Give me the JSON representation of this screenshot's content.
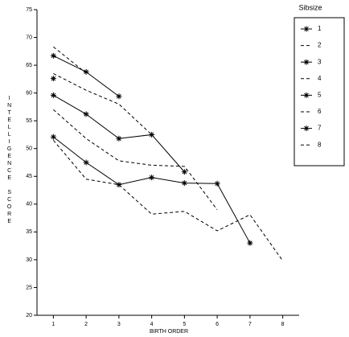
{
  "chart_data": {
    "type": "line",
    "x_label": "BIRTH ORDER",
    "y_label": "INTELLIGENCE SCORE",
    "legend_title": "Sibsize",
    "x": [
      1,
      2,
      3,
      4,
      5,
      6,
      7,
      8
    ],
    "xlim": [
      0.5,
      8.5
    ],
    "xticks": [
      1,
      2,
      3,
      4,
      5,
      6,
      7,
      8
    ],
    "ylim": [
      20,
      75
    ],
    "yticks": [
      20,
      25,
      30,
      35,
      40,
      45,
      50,
      55,
      60,
      65,
      70,
      75
    ],
    "legend": "outside right",
    "series": [
      {
        "name": "1",
        "color": "#000000",
        "style": "solid",
        "marker": "asterisk",
        "values": [
          62.6,
          null,
          null,
          null,
          null,
          null,
          null,
          null
        ]
      },
      {
        "name": "2",
        "color": "#000000",
        "style": "dashed",
        "marker": "none",
        "values": [
          68.3,
          63.6,
          null,
          null,
          null,
          null,
          null,
          null
        ]
      },
      {
        "name": "3",
        "color": "#000000",
        "style": "solid",
        "marker": "asterisk",
        "values": [
          66.7,
          63.8,
          59.4,
          null,
          null,
          null,
          null,
          null
        ]
      },
      {
        "name": "4",
        "color": "#000000",
        "style": "dashed",
        "marker": "none",
        "values": [
          63.5,
          60.5,
          58,
          52.5,
          null,
          null,
          null,
          null
        ]
      },
      {
        "name": "5",
        "color": "#000000",
        "style": "solid",
        "marker": "asterisk",
        "values": [
          59.6,
          56.2,
          51.8,
          52.5,
          45.8,
          null,
          null,
          null
        ]
      },
      {
        "name": "6",
        "color": "#000000",
        "style": "dashed",
        "marker": "none",
        "values": [
          57,
          51.8,
          47.8,
          47,
          46.8,
          39,
          null,
          null
        ]
      },
      {
        "name": "7",
        "color": "#000000",
        "style": "solid",
        "marker": "asterisk",
        "values": [
          52.1,
          47.5,
          43.5,
          44.8,
          43.8,
          43.7,
          33,
          null
        ]
      },
      {
        "name": "8",
        "color": "#000000",
        "style": "dashed",
        "marker": "none",
        "values": [
          51.5,
          44.5,
          43.5,
          38.2,
          38.7,
          35.2,
          38.1,
          29.8
        ]
      }
    ]
  }
}
